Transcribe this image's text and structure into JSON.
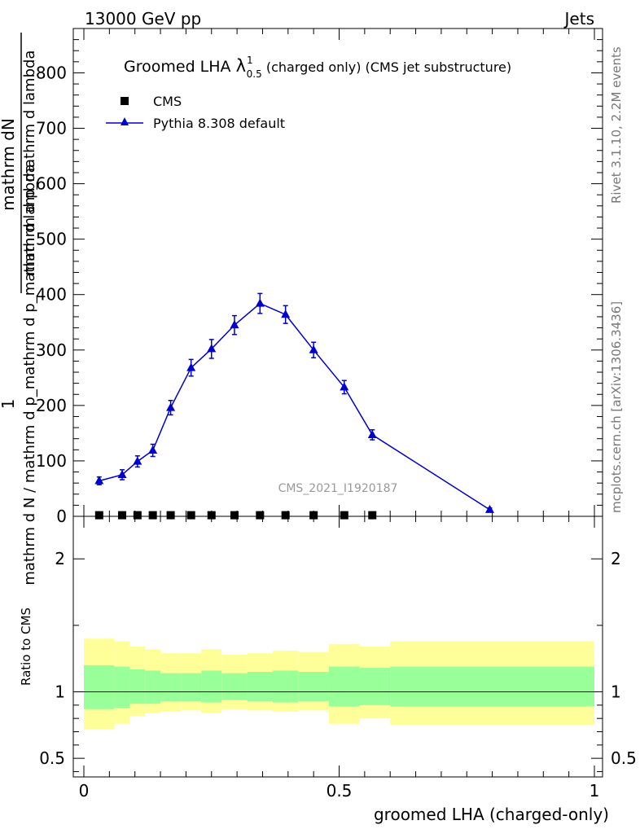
{
  "header": {
    "left": "13000 GeV pp",
    "right": "Jets"
  },
  "side_labels": {
    "rivet": "Rivet 3.1.10,  2.2M events",
    "mcplots": "mcplots.cern.ch [arXiv:1306.3436]"
  },
  "chart_data": [
    {
      "type": "scatter",
      "title_main": "Groomed LHA ",
      "title_lambda": "λ",
      "title_sup": "1",
      "title_sub": "0.5",
      "title_rest": " (charged only) (CMS jet substructure)",
      "watermark": "CMS_2021_I1920187",
      "ylabel_num": "1",
      "ylabel_frac_num": "mathrm dN",
      "ylabel_frac_den": "mathrm d p_mathrm d lambda",
      "ylabel_den": "mathrm d N / mathrm d p_mathrm d p_mathrm d lambda",
      "xlim": [
        0,
        1
      ],
      "ylim": [
        0,
        880
      ],
      "yticks": [
        0,
        100,
        200,
        300,
        400,
        500,
        600,
        700,
        800
      ],
      "series": [
        {
          "name": "CMS",
          "color": "#000000",
          "marker": "square",
          "x": [
            0.03,
            0.075,
            0.105,
            0.135,
            0.17,
            0.21,
            0.25,
            0.295,
            0.345,
            0.395,
            0.45,
            0.51,
            0.565
          ],
          "y": [
            2,
            2,
            2,
            2,
            2,
            2,
            2,
            2,
            2,
            2,
            2,
            2,
            2
          ]
        },
        {
          "name": "Pythia 8.308 default",
          "color": "#0000cc",
          "marker": "triangle",
          "x": [
            0.03,
            0.075,
            0.105,
            0.135,
            0.17,
            0.21,
            0.25,
            0.295,
            0.345,
            0.395,
            0.45,
            0.51,
            0.565,
            0.795
          ],
          "y": [
            64,
            75,
            99,
            119,
            196,
            268,
            302,
            345,
            384,
            364,
            300,
            233,
            147,
            12
          ],
          "yerr": [
            7,
            9,
            10,
            11,
            13,
            15,
            17,
            17,
            18,
            16,
            14,
            12,
            9,
            3
          ]
        }
      ]
    },
    {
      "type": "area",
      "ylabel": "Ratio to CMS",
      "xlabel": "groomed LHA (charged-only)",
      "xlim": [
        0,
        1
      ],
      "ylim": [
        0.36,
        2.32
      ],
      "yticks": [
        0.5,
        1,
        2
      ],
      "ytick_labels": [
        "0.5",
        "1",
        "2"
      ],
      "xticks": [
        0,
        0.5,
        1
      ],
      "xtick_labels": [
        "0",
        "0.5",
        "1"
      ],
      "bands": {
        "edges": [
          0,
          0.06,
          0.09,
          0.12,
          0.15,
          0.19,
          0.23,
          0.27,
          0.32,
          0.37,
          0.42,
          0.48,
          0.54,
          0.6,
          1.0
        ],
        "yellow_hi": [
          1.4,
          1.38,
          1.34,
          1.32,
          1.29,
          1.29,
          1.32,
          1.28,
          1.29,
          1.31,
          1.3,
          1.36,
          1.34,
          1.38
        ],
        "yellow_lo": [
          0.72,
          0.76,
          0.82,
          0.84,
          0.85,
          0.86,
          0.84,
          0.87,
          0.86,
          0.85,
          0.86,
          0.76,
          0.8,
          0.75
        ],
        "green_hi": [
          1.2,
          1.19,
          1.17,
          1.16,
          1.14,
          1.14,
          1.16,
          1.14,
          1.15,
          1.16,
          1.15,
          1.19,
          1.18,
          1.19
        ],
        "green_lo": [
          0.87,
          0.88,
          0.91,
          0.91,
          0.93,
          0.93,
          0.92,
          0.94,
          0.93,
          0.92,
          0.93,
          0.89,
          0.9,
          0.89
        ],
        "yellow_color": "#ffff99",
        "green_color": "#99ff99"
      },
      "reference_line": 1
    }
  ]
}
